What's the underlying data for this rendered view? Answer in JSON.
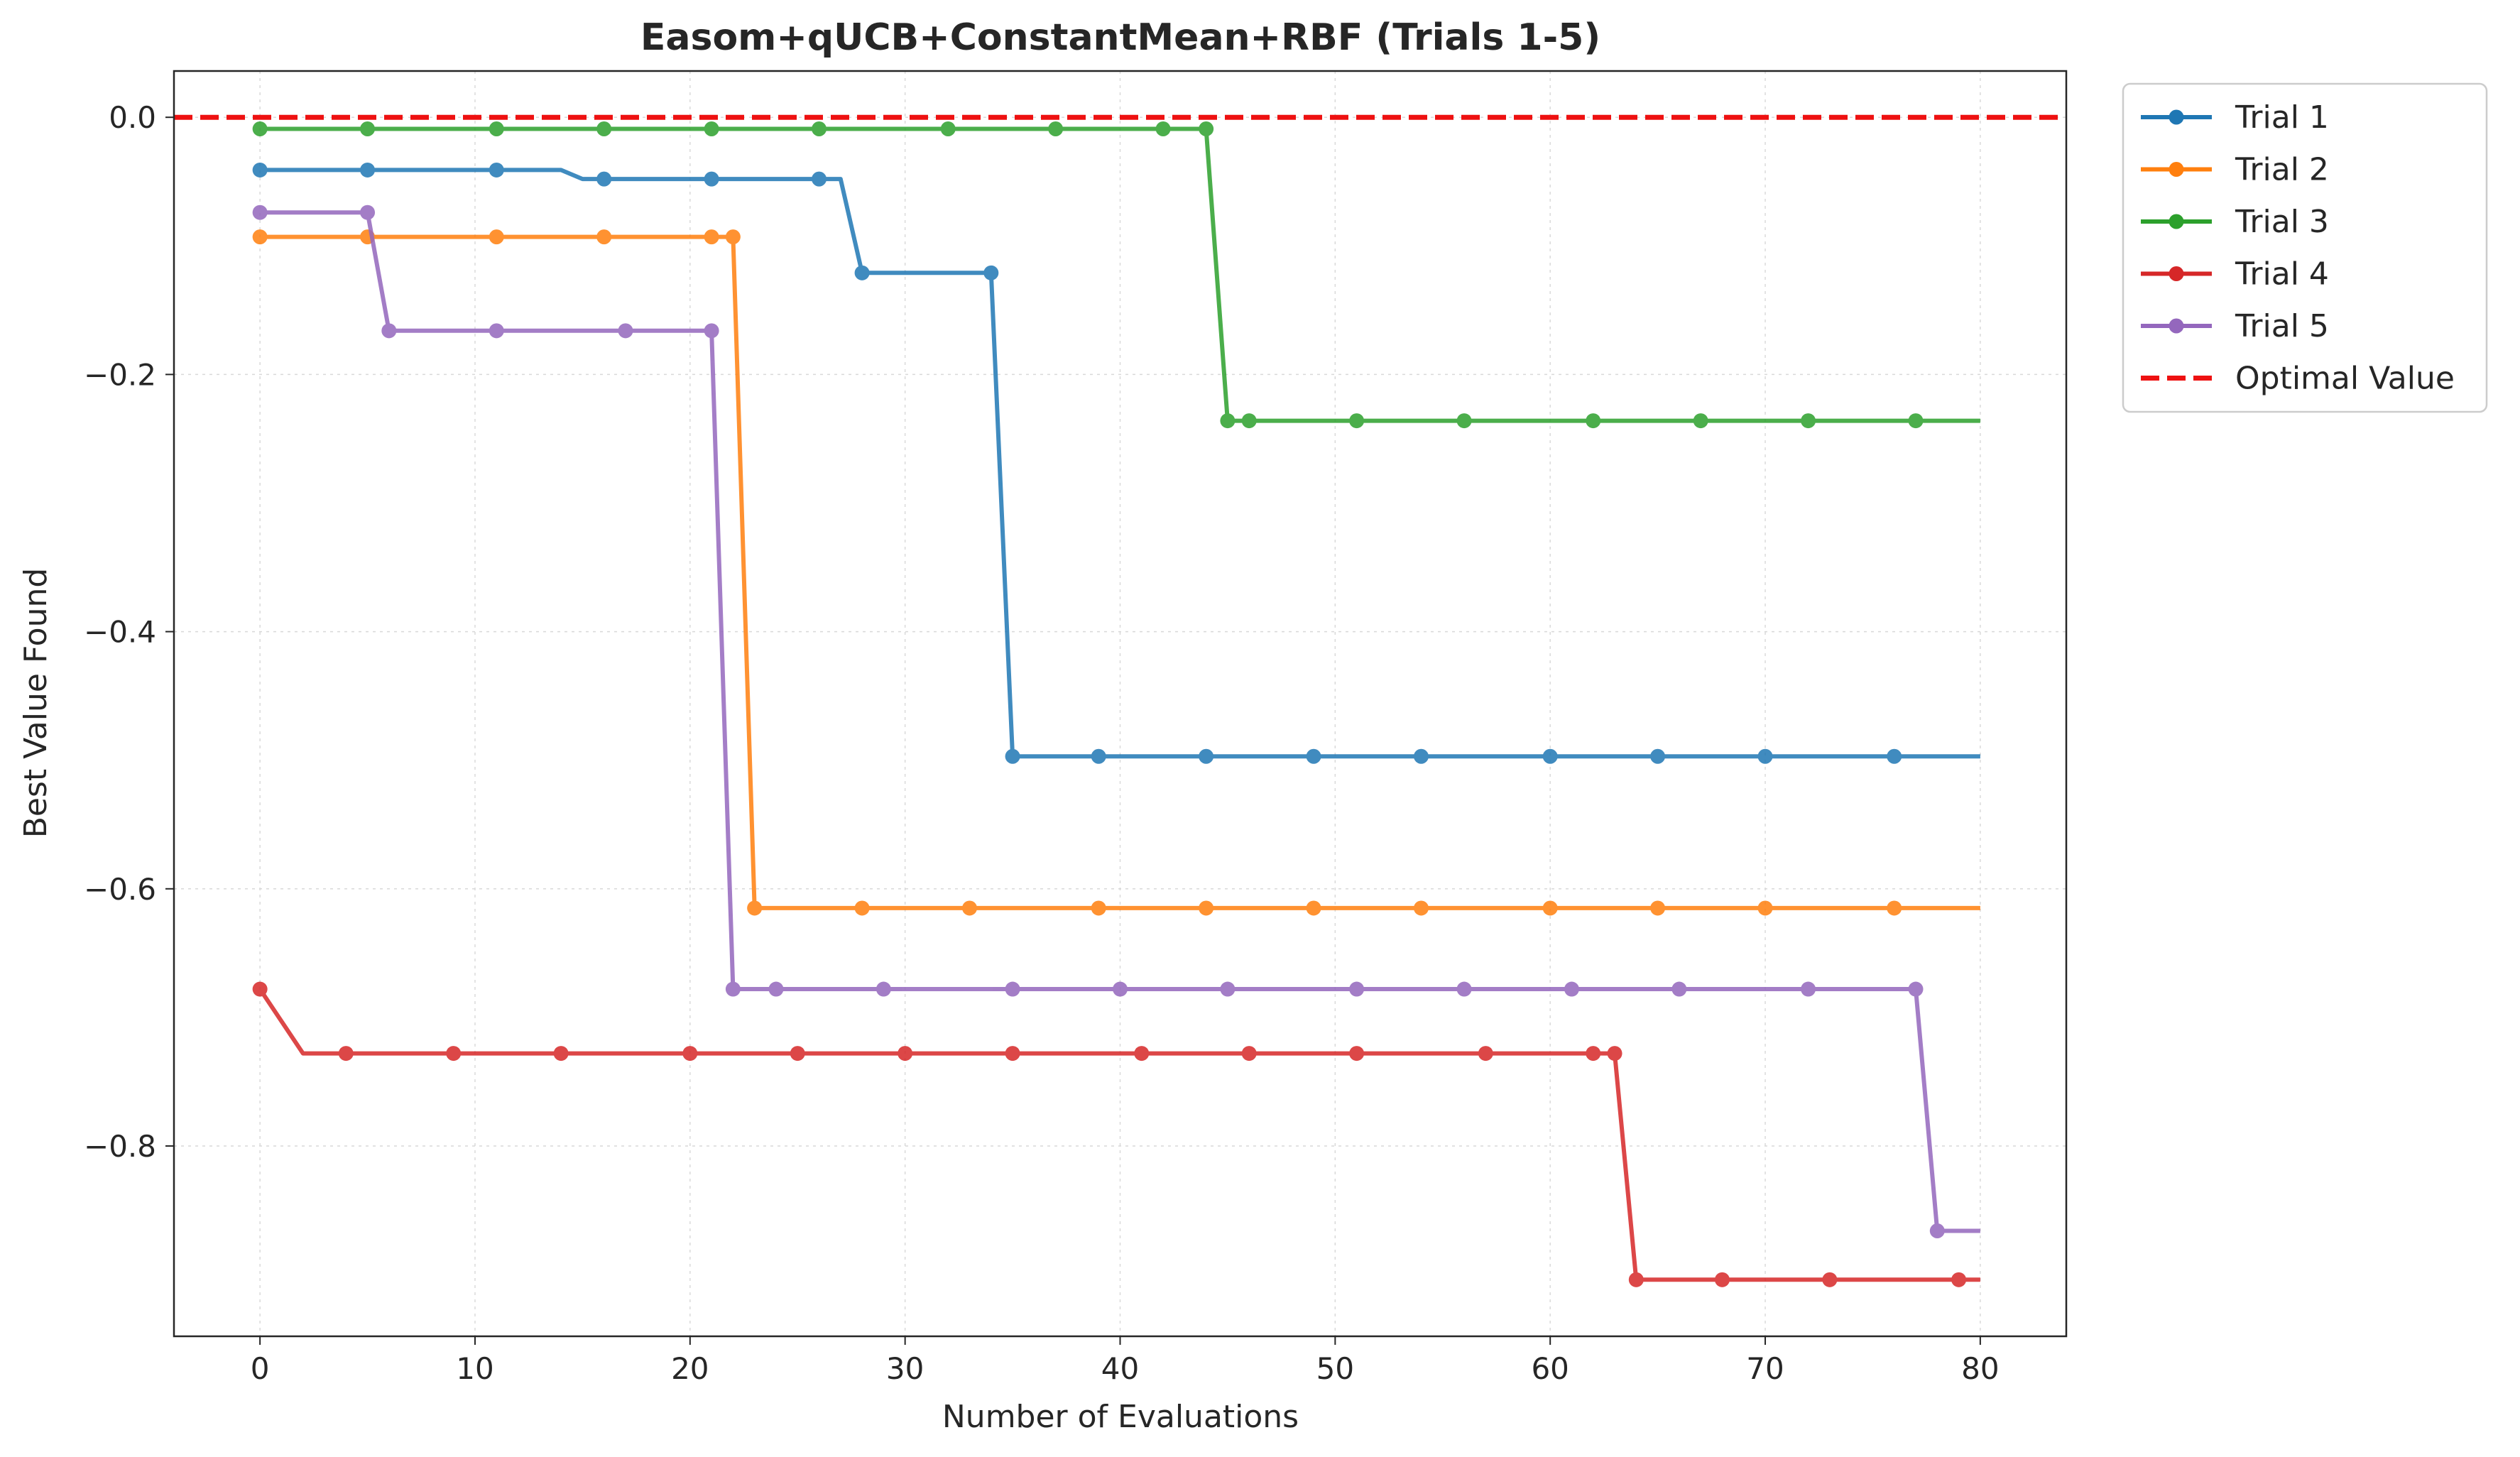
{
  "chart_data": {
    "type": "line",
    "title": "Easom+qUCB+ConstantMean+RBF (Trials 1-5)",
    "xlabel": "Number of Evaluations",
    "ylabel": "Best Value Found",
    "xlim": [
      -4,
      84
    ],
    "ylim": [
      -0.948,
      0.036
    ],
    "xticks": [
      0,
      10,
      20,
      30,
      40,
      50,
      60,
      70,
      80
    ],
    "xtick_labels": [
      "0",
      "10",
      "20",
      "30",
      "40",
      "50",
      "60",
      "70",
      "80"
    ],
    "yticks": [
      0.0,
      -0.2,
      -0.4,
      -0.6,
      -0.8
    ],
    "ytick_labels": [
      "0.0",
      "−0.2",
      "−0.4",
      "−0.6",
      "−0.8"
    ],
    "grid": true,
    "legend_position": "outside-top-right",
    "series": [
      {
        "name": "Trial 1",
        "color": "#1f77b4",
        "line": [
          [
            0,
            -0.041
          ],
          [
            14,
            -0.041
          ],
          [
            15,
            -0.048
          ],
          [
            27,
            -0.048
          ],
          [
            28,
            -0.121
          ],
          [
            34,
            -0.121
          ],
          [
            35,
            -0.497
          ],
          [
            80,
            -0.497
          ]
        ],
        "markers": [
          [
            0,
            -0.041
          ],
          [
            5,
            -0.041
          ],
          [
            11,
            -0.041
          ],
          [
            16,
            -0.048
          ],
          [
            21,
            -0.048
          ],
          [
            26,
            -0.048
          ],
          [
            28,
            -0.121
          ],
          [
            34,
            -0.121
          ],
          [
            35,
            -0.497
          ],
          [
            39,
            -0.497
          ],
          [
            44,
            -0.497
          ],
          [
            49,
            -0.497
          ],
          [
            54,
            -0.497
          ],
          [
            60,
            -0.497
          ],
          [
            65,
            -0.497
          ],
          [
            70,
            -0.497
          ],
          [
            76,
            -0.497
          ]
        ]
      },
      {
        "name": "Trial 2",
        "color": "#ff7f0e",
        "line": [
          [
            0,
            -0.093
          ],
          [
            22,
            -0.093
          ],
          [
            23,
            -0.615
          ],
          [
            80,
            -0.615
          ]
        ],
        "markers": [
          [
            0,
            -0.093
          ],
          [
            5,
            -0.093
          ],
          [
            11,
            -0.093
          ],
          [
            16,
            -0.093
          ],
          [
            21,
            -0.093
          ],
          [
            22,
            -0.093
          ],
          [
            23,
            -0.615
          ],
          [
            28,
            -0.615
          ],
          [
            33,
            -0.615
          ],
          [
            39,
            -0.615
          ],
          [
            44,
            -0.615
          ],
          [
            49,
            -0.615
          ],
          [
            54,
            -0.615
          ],
          [
            60,
            -0.615
          ],
          [
            65,
            -0.615
          ],
          [
            70,
            -0.615
          ],
          [
            76,
            -0.615
          ]
        ]
      },
      {
        "name": "Trial 3",
        "color": "#2ca02c",
        "line": [
          [
            0,
            -0.009
          ],
          [
            44,
            -0.009
          ],
          [
            45,
            -0.236
          ],
          [
            80,
            -0.236
          ]
        ],
        "markers": [
          [
            0,
            -0.009
          ],
          [
            5,
            -0.009
          ],
          [
            11,
            -0.009
          ],
          [
            16,
            -0.009
          ],
          [
            21,
            -0.009
          ],
          [
            26,
            -0.009
          ],
          [
            32,
            -0.009
          ],
          [
            37,
            -0.009
          ],
          [
            42,
            -0.009
          ],
          [
            44,
            -0.009
          ],
          [
            45,
            -0.236
          ],
          [
            46,
            -0.236
          ],
          [
            51,
            -0.236
          ],
          [
            56,
            -0.236
          ],
          [
            62,
            -0.236
          ],
          [
            67,
            -0.236
          ],
          [
            72,
            -0.236
          ],
          [
            77,
            -0.236
          ]
        ]
      },
      {
        "name": "Trial 4",
        "color": "#d62728",
        "line": [
          [
            0,
            -0.678
          ],
          [
            2,
            -0.728
          ],
          [
            63,
            -0.728
          ],
          [
            64,
            -0.904
          ],
          [
            80,
            -0.904
          ]
        ],
        "markers": [
          [
            0,
            -0.678
          ],
          [
            4,
            -0.728
          ],
          [
            9,
            -0.728
          ],
          [
            14,
            -0.728
          ],
          [
            20,
            -0.728
          ],
          [
            25,
            -0.728
          ],
          [
            30,
            -0.728
          ],
          [
            35,
            -0.728
          ],
          [
            41,
            -0.728
          ],
          [
            46,
            -0.728
          ],
          [
            51,
            -0.728
          ],
          [
            57,
            -0.728
          ],
          [
            62,
            -0.728
          ],
          [
            63,
            -0.728
          ],
          [
            64,
            -0.904
          ],
          [
            68,
            -0.904
          ],
          [
            73,
            -0.904
          ],
          [
            79,
            -0.904
          ]
        ]
      },
      {
        "name": "Trial 5",
        "color": "#9467bd",
        "line": [
          [
            0,
            -0.074
          ],
          [
            5,
            -0.074
          ],
          [
            6,
            -0.166
          ],
          [
            21,
            -0.166
          ],
          [
            22,
            -0.678
          ],
          [
            77,
            -0.678
          ],
          [
            78,
            -0.866
          ],
          [
            80,
            -0.866
          ]
        ],
        "markers": [
          [
            0,
            -0.074
          ],
          [
            5,
            -0.074
          ],
          [
            6,
            -0.166
          ],
          [
            11,
            -0.166
          ],
          [
            17,
            -0.166
          ],
          [
            21,
            -0.166
          ],
          [
            22,
            -0.678
          ],
          [
            24,
            -0.678
          ],
          [
            29,
            -0.678
          ],
          [
            35,
            -0.678
          ],
          [
            40,
            -0.678
          ],
          [
            45,
            -0.678
          ],
          [
            51,
            -0.678
          ],
          [
            56,
            -0.678
          ],
          [
            61,
            -0.678
          ],
          [
            66,
            -0.678
          ],
          [
            72,
            -0.678
          ],
          [
            77,
            -0.678
          ],
          [
            78,
            -0.866
          ]
        ]
      }
    ],
    "reference_line": {
      "name": "Optimal Value",
      "y": 0.0,
      "color": "#ee1111",
      "style": "dashed"
    }
  }
}
